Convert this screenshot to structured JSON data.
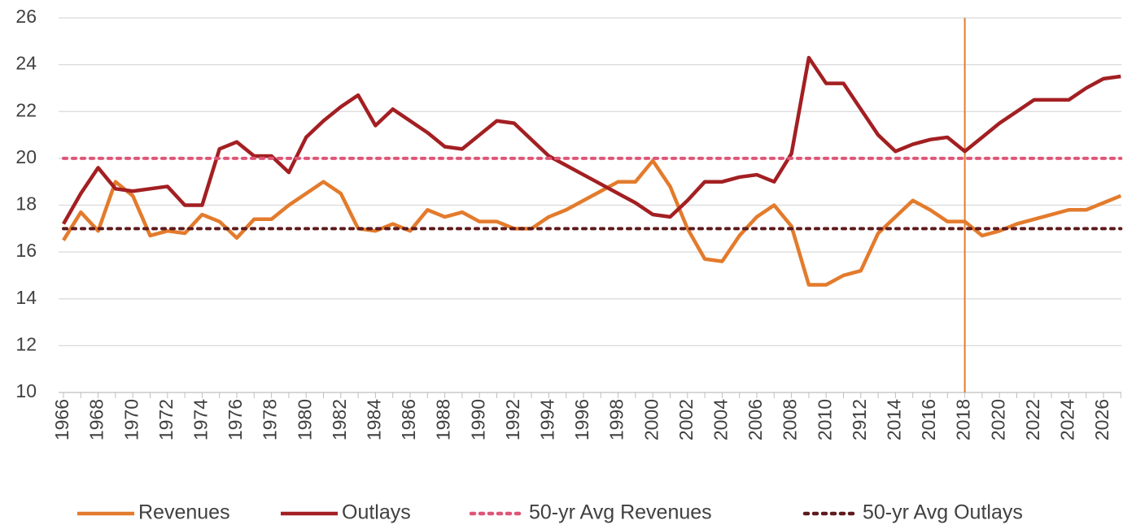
{
  "chart_data": {
    "type": "line",
    "categories": [
      "1966",
      null,
      "1968",
      null,
      "1970",
      null,
      "1972",
      null,
      "1974",
      null,
      "1976",
      null,
      "1978",
      null,
      "1980",
      null,
      "1982",
      null,
      "1984",
      null,
      "1986",
      null,
      "1988",
      null,
      "1990",
      null,
      "1992",
      null,
      "1994",
      null,
      "1996",
      null,
      "1998",
      null,
      "2000",
      null,
      "2002",
      null,
      "2004",
      null,
      "2006",
      null,
      "2008",
      null,
      "2010",
      null,
      "2912",
      null,
      "2014",
      null,
      "2016",
      null,
      "2018",
      null,
      "2020",
      null,
      "2022",
      null,
      "2024",
      null,
      "2026",
      null
    ],
    "series": [
      {
        "name": "Revenues",
        "color": "#e37b2c",
        "dashed": false,
        "values": [
          16.5,
          17.7,
          16.9,
          19.0,
          18.4,
          16.7,
          16.9,
          16.8,
          17.6,
          17.3,
          16.6,
          17.4,
          17.4,
          18.0,
          18.5,
          19.0,
          18.5,
          17.0,
          16.9,
          17.2,
          16.9,
          17.8,
          17.5,
          17.7,
          17.3,
          17.3,
          17.0,
          17.0,
          17.5,
          17.8,
          18.2,
          18.6,
          19.0,
          19.0,
          19.9,
          18.8,
          17.0,
          15.7,
          15.6,
          16.7,
          17.5,
          18.0,
          17.1,
          14.6,
          14.6,
          15.0,
          15.2,
          16.8,
          17.5,
          18.2,
          17.8,
          17.3,
          17.3,
          16.7,
          16.9,
          17.2,
          17.4,
          17.6,
          17.8,
          17.8,
          18.1,
          18.4
        ]
      },
      {
        "name": "Outlays",
        "color": "#a31f22",
        "dashed": false,
        "values": [
          17.2,
          18.5,
          19.6,
          18.7,
          18.6,
          18.7,
          18.8,
          18.0,
          18.0,
          20.4,
          20.7,
          20.1,
          20.1,
          19.4,
          20.9,
          21.6,
          22.2,
          22.7,
          21.4,
          22.1,
          21.6,
          21.1,
          20.5,
          20.4,
          21.0,
          21.6,
          21.5,
          20.8,
          20.1,
          19.7,
          19.3,
          18.9,
          18.5,
          18.1,
          17.6,
          17.5,
          18.2,
          19.0,
          19.0,
          19.2,
          19.3,
          19.0,
          20.2,
          24.3,
          23.2,
          23.2,
          22.1,
          21.0,
          20.3,
          20.6,
          20.8,
          20.9,
          20.3,
          20.9,
          21.5,
          22.0,
          22.5,
          22.5,
          22.5,
          23.0,
          23.4,
          23.5
        ]
      },
      {
        "name": "50-yr Avg Revenues",
        "color": "#e05577",
        "dashed": true,
        "values": [
          20,
          20,
          20,
          20,
          20,
          20,
          20,
          20,
          20,
          20,
          20,
          20,
          20,
          20,
          20,
          20,
          20,
          20,
          20,
          20,
          20,
          20,
          20,
          20,
          20,
          20,
          20,
          20,
          20,
          20,
          20,
          20,
          20,
          20,
          20,
          20,
          20,
          20,
          20,
          20,
          20,
          20,
          20,
          20,
          20,
          20,
          20,
          20,
          20,
          20,
          20,
          20,
          20,
          20,
          20,
          20,
          20,
          20,
          20,
          20,
          20,
          20
        ]
      },
      {
        "name": "50-yr Avg Outlays",
        "color": "#5e1a1c",
        "dashed": true,
        "values": [
          17,
          17,
          17,
          17,
          17,
          17,
          17,
          17,
          17,
          17,
          17,
          17,
          17,
          17,
          17,
          17,
          17,
          17,
          17,
          17,
          17,
          17,
          17,
          17,
          17,
          17,
          17,
          17,
          17,
          17,
          17,
          17,
          17,
          17,
          17,
          17,
          17,
          17,
          17,
          17,
          17,
          17,
          17,
          17,
          17,
          17,
          17,
          17,
          17,
          17,
          17,
          17,
          17,
          17,
          17,
          17,
          17,
          17,
          17,
          17,
          17,
          17
        ]
      }
    ],
    "vline": {
      "category": "2018",
      "color": "#e37b2c"
    },
    "ylim": [
      10,
      26
    ],
    "yticks": [
      10,
      12,
      14,
      16,
      18,
      20,
      22,
      24,
      26
    ],
    "grid": true,
    "legend": "bottom"
  }
}
